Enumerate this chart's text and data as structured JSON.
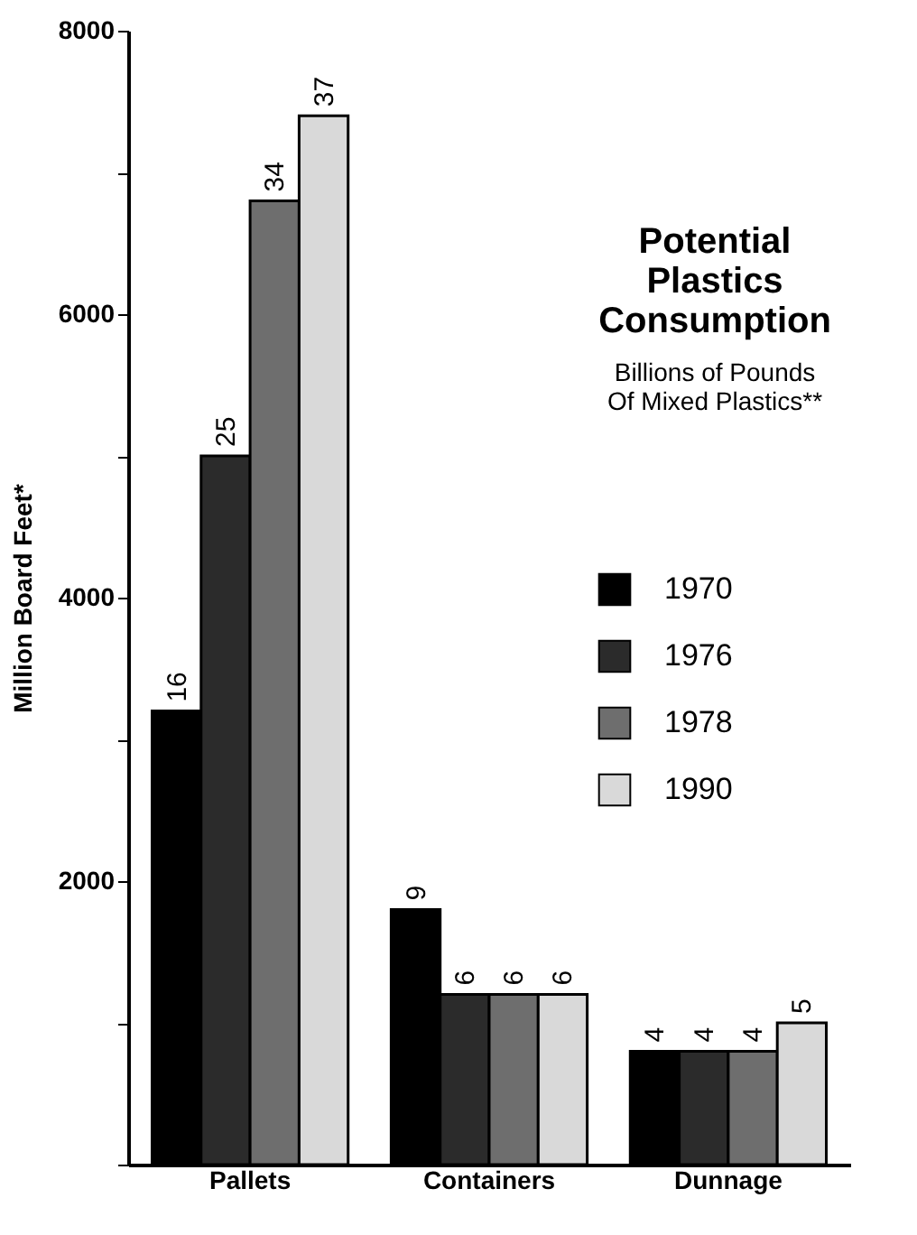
{
  "chart_data": {
    "type": "bar",
    "title": "Potential Plastics Consumption",
    "subtitle": "Billions of Pounds\nOf Mixed Plastics**",
    "ylabel": "Million Board Feet*",
    "categories": [
      "Pallets",
      "Containers",
      "Dunnage"
    ],
    "series": [
      {
        "name": "1970",
        "color": "#000000",
        "values": [
          3200,
          1800,
          800
        ]
      },
      {
        "name": "1976",
        "color": "#2b2b2b",
        "values": [
          5000,
          1200,
          800
        ]
      },
      {
        "name": "1978",
        "color": "#6e6e6e",
        "values": [
          6800,
          1200,
          800
        ]
      },
      {
        "name": "1990",
        "color": "#d9d9d9",
        "values": [
          7400,
          1200,
          1000
        ]
      }
    ],
    "annotations": [
      "16",
      "9",
      "4",
      "25",
      "6",
      "4",
      "34",
      "6",
      "4",
      "37",
      "6",
      "5"
    ],
    "ylim": [
      0,
      8000
    ],
    "yticks": [
      {
        "value": 0,
        "label": null
      },
      {
        "value": 1000,
        "label": null
      },
      2000,
      {
        "value": 3000,
        "label": null
      },
      4000,
      {
        "value": 5000,
        "label": null
      },
      6000,
      {
        "value": 7000,
        "label": null
      },
      8000
    ],
    "grid": false,
    "legend": "right"
  }
}
